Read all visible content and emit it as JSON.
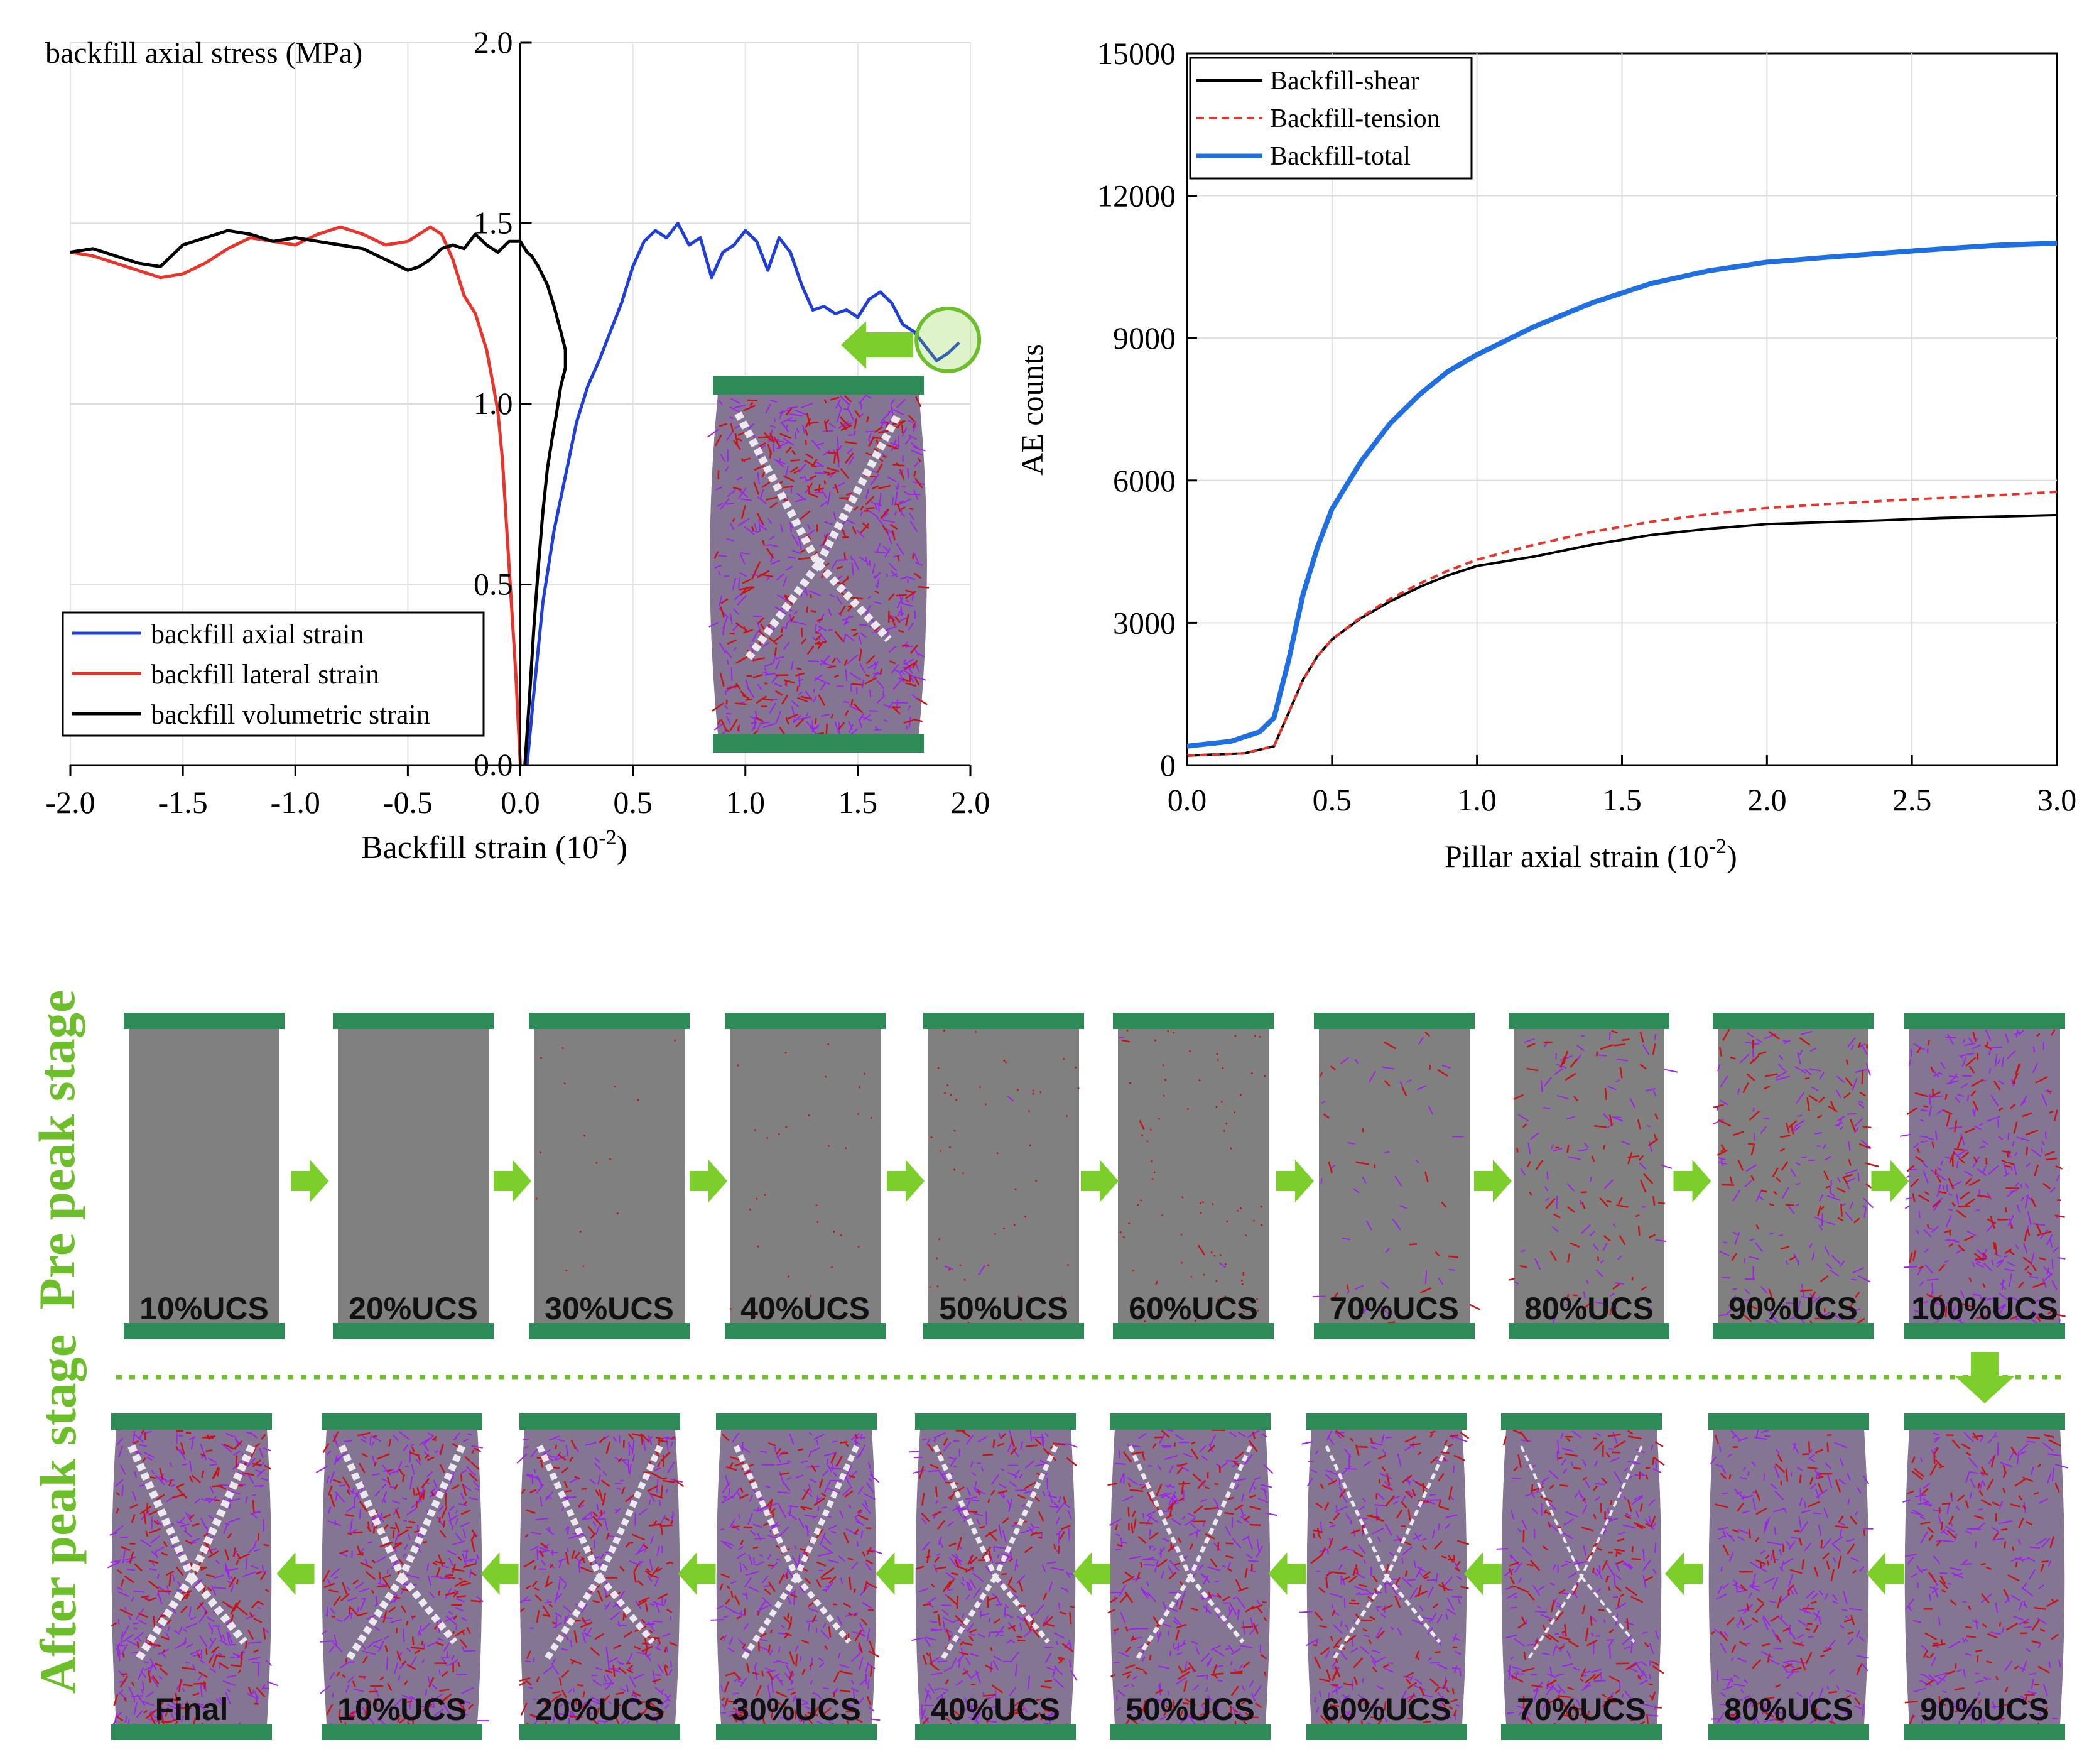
{
  "chart_data": [
    {
      "type": "line",
      "id": "left-stress-strain",
      "ylabel": "backfill axial stress (MPa)",
      "xlabel": "Backfill strain (10",
      "xlabel_sup": "-2",
      "xlabel_tail": ")",
      "xlim": [
        -2.0,
        2.0
      ],
      "ylim": [
        0.0,
        2.0
      ],
      "x_ticks": [
        "-2.0",
        "-1.5",
        "-1.0",
        "-0.5",
        "0.0",
        "0.5",
        "1.0",
        "1.5",
        "2.0"
      ],
      "x_tick_values": [
        -2.0,
        -1.5,
        -1.0,
        -0.5,
        0.0,
        0.5,
        1.0,
        1.5,
        2.0
      ],
      "y_ticks": [
        "0.0",
        "0.5",
        "1.0",
        "1.5",
        "2.0"
      ],
      "y_tick_values": [
        0.0,
        0.5,
        1.0,
        1.5,
        2.0
      ],
      "grid": true,
      "legend_position": "bottom-left",
      "series": [
        {
          "name": "backfill axial strain",
          "color": "#1f3fd8",
          "x": [
            0.03,
            0.06,
            0.1,
            0.15,
            0.2,
            0.25,
            0.3,
            0.35,
            0.4,
            0.45,
            0.5,
            0.55,
            0.6,
            0.65,
            0.7,
            0.75,
            0.8,
            0.85,
            0.9,
            0.95,
            1.0,
            1.05,
            1.1,
            1.15,
            1.2,
            1.25,
            1.3,
            1.35,
            1.4,
            1.45,
            1.5,
            1.55,
            1.6,
            1.65,
            1.7,
            1.75,
            1.8,
            1.85,
            1.9,
            1.95
          ],
          "y": [
            0.0,
            0.2,
            0.45,
            0.65,
            0.8,
            0.95,
            1.05,
            1.12,
            1.2,
            1.28,
            1.38,
            1.45,
            1.48,
            1.46,
            1.5,
            1.44,
            1.46,
            1.35,
            1.42,
            1.44,
            1.48,
            1.45,
            1.37,
            1.46,
            1.42,
            1.33,
            1.26,
            1.27,
            1.25,
            1.26,
            1.24,
            1.29,
            1.31,
            1.28,
            1.22,
            1.2,
            1.16,
            1.12,
            1.14,
            1.17
          ]
        },
        {
          "name": "backfill lateral strain",
          "color": "#e8352b",
          "x": [
            0.0,
            -0.02,
            -0.05,
            -0.08,
            -0.1,
            -0.12,
            -0.15,
            -0.2,
            -0.25,
            -0.3,
            -0.35,
            -0.4,
            -0.45,
            -0.5,
            -0.6,
            -0.7,
            -0.8,
            -0.9,
            -1.0,
            -1.1,
            -1.2,
            -1.3,
            -1.4,
            -1.5,
            -1.6,
            -1.7,
            -1.8,
            -1.9,
            -2.0
          ],
          "y": [
            0.0,
            0.25,
            0.55,
            0.85,
            0.98,
            1.05,
            1.15,
            1.25,
            1.3,
            1.4,
            1.47,
            1.49,
            1.47,
            1.45,
            1.44,
            1.47,
            1.49,
            1.47,
            1.44,
            1.45,
            1.46,
            1.43,
            1.39,
            1.36,
            1.35,
            1.37,
            1.39,
            1.41,
            1.42
          ]
        },
        {
          "name": "backfill volumetric strain",
          "color": "#000000",
          "x": [
            0.02,
            0.04,
            0.06,
            0.08,
            0.1,
            0.12,
            0.14,
            0.16,
            0.18,
            0.2,
            0.2,
            0.18,
            0.15,
            0.12,
            0.08,
            0.05,
            0.03,
            0.0,
            -0.05,
            -0.1,
            -0.15,
            -0.2,
            -0.25,
            -0.3,
            -0.35,
            -0.4,
            -0.45,
            -0.5,
            -0.6,
            -0.7,
            -0.8,
            -0.9,
            -1.0,
            -1.1,
            -1.2,
            -1.3,
            -1.4,
            -1.5,
            -1.6,
            -1.7,
            -1.8,
            -1.9,
            -2.0
          ],
          "y": [
            0.0,
            0.18,
            0.38,
            0.55,
            0.7,
            0.82,
            0.9,
            0.97,
            1.05,
            1.1,
            1.15,
            1.2,
            1.27,
            1.33,
            1.38,
            1.41,
            1.42,
            1.45,
            1.45,
            1.42,
            1.44,
            1.47,
            1.43,
            1.44,
            1.43,
            1.4,
            1.38,
            1.37,
            1.4,
            1.43,
            1.44,
            1.45,
            1.46,
            1.45,
            1.47,
            1.48,
            1.46,
            1.44,
            1.38,
            1.39,
            1.41,
            1.43,
            1.42
          ]
        }
      ],
      "inset_marker_at_x": 1.9,
      "inset_marker_at_y": 1.16
    },
    {
      "type": "line",
      "id": "right-ae-counts",
      "ylabel": "AE counts",
      "xlabel": "Pillar axial strain (10",
      "xlabel_sup": "-2",
      "xlabel_tail": ")",
      "xlim": [
        0.0,
        3.0
      ],
      "ylim": [
        0,
        15000
      ],
      "x_ticks": [
        "0.0",
        "0.5",
        "1.0",
        "1.5",
        "2.0",
        "2.5",
        "3.0"
      ],
      "x_tick_values": [
        0.0,
        0.5,
        1.0,
        1.5,
        2.0,
        2.5,
        3.0
      ],
      "y_ticks": [
        "0",
        "3000",
        "6000",
        "9000",
        "12000",
        "15000"
      ],
      "y_tick_values": [
        0,
        3000,
        6000,
        9000,
        12000,
        15000
      ],
      "grid": true,
      "legend_position": "top-left",
      "series": [
        {
          "name": "Backfill-shear",
          "color": "#000000",
          "dash": "",
          "x": [
            0.0,
            0.2,
            0.3,
            0.35,
            0.4,
            0.45,
            0.5,
            0.6,
            0.7,
            0.8,
            0.9,
            1.0,
            1.2,
            1.4,
            1.6,
            1.8,
            2.0,
            2.2,
            2.4,
            2.6,
            2.8,
            3.0
          ],
          "y": [
            200,
            250,
            400,
            1100,
            1800,
            2300,
            2650,
            3100,
            3450,
            3750,
            4000,
            4200,
            4400,
            4650,
            4850,
            4980,
            5080,
            5120,
            5160,
            5210,
            5240,
            5270
          ]
        },
        {
          "name": "Backfill-tension",
          "color": "#e8352b",
          "dash": "12,8",
          "x": [
            0.0,
            0.2,
            0.3,
            0.35,
            0.4,
            0.45,
            0.5,
            0.6,
            0.7,
            0.8,
            0.9,
            1.0,
            1.2,
            1.4,
            1.6,
            1.8,
            2.0,
            2.2,
            2.4,
            2.6,
            2.8,
            3.0
          ],
          "y": [
            200,
            250,
            400,
            1100,
            1800,
            2300,
            2650,
            3120,
            3500,
            3820,
            4100,
            4330,
            4650,
            4920,
            5130,
            5290,
            5420,
            5500,
            5570,
            5630,
            5690,
            5760
          ]
        },
        {
          "name": "Backfill-total",
          "color": "#1f6fe0",
          "dash": "",
          "x": [
            0.0,
            0.15,
            0.25,
            0.3,
            0.35,
            0.4,
            0.45,
            0.5,
            0.6,
            0.7,
            0.8,
            0.9,
            1.0,
            1.2,
            1.4,
            1.6,
            1.8,
            2.0,
            2.2,
            2.4,
            2.6,
            2.8,
            3.0
          ],
          "y": [
            400,
            500,
            700,
            1000,
            2200,
            3600,
            4600,
            5400,
            6400,
            7200,
            7800,
            8300,
            8650,
            9250,
            9750,
            10150,
            10420,
            10600,
            10700,
            10790,
            10880,
            10960,
            11000
          ]
        }
      ]
    }
  ],
  "stages": {
    "pre_label": "Pre peak stage",
    "after_label": "After peak stage",
    "pre_peak": [
      {
        "label": "10%UCS",
        "damage": 0.0
      },
      {
        "label": "20%UCS",
        "damage": 0.0
      },
      {
        "label": "30%UCS",
        "damage": 0.03
      },
      {
        "label": "40%UCS",
        "damage": 0.05
      },
      {
        "label": "50%UCS",
        "damage": 0.08
      },
      {
        "label": "60%UCS",
        "damage": 0.12
      },
      {
        "label": "70%UCS",
        "damage": 0.35
      },
      {
        "label": "80%UCS",
        "damage": 0.55
      },
      {
        "label": "90%UCS",
        "damage": 0.7
      },
      {
        "label": "100%UCS",
        "damage": 0.85
      }
    ],
    "after_peak": [
      {
        "label": "Final",
        "damage": 1.0
      },
      {
        "label": "10%UCS",
        "damage": 0.98
      },
      {
        "label": "20%UCS",
        "damage": 0.96
      },
      {
        "label": "30%UCS",
        "damage": 0.94
      },
      {
        "label": "40%UCS",
        "damage": 0.92
      },
      {
        "label": "50%UCS",
        "damage": 0.9
      },
      {
        "label": "60%UCS",
        "damage": 0.88
      },
      {
        "label": "70%UCS",
        "damage": 0.86
      },
      {
        "label": "80%UCS",
        "damage": 0.82
      },
      {
        "label": "90%UCS",
        "damage": 0.8
      }
    ]
  },
  "colors": {
    "platen": "#2e8b57",
    "specimen": "#808080",
    "arrow": "#7ccf2a",
    "stage_text": "#6cbf2a",
    "crack_purple": "#a020f0",
    "crack_red": "#c81414"
  }
}
